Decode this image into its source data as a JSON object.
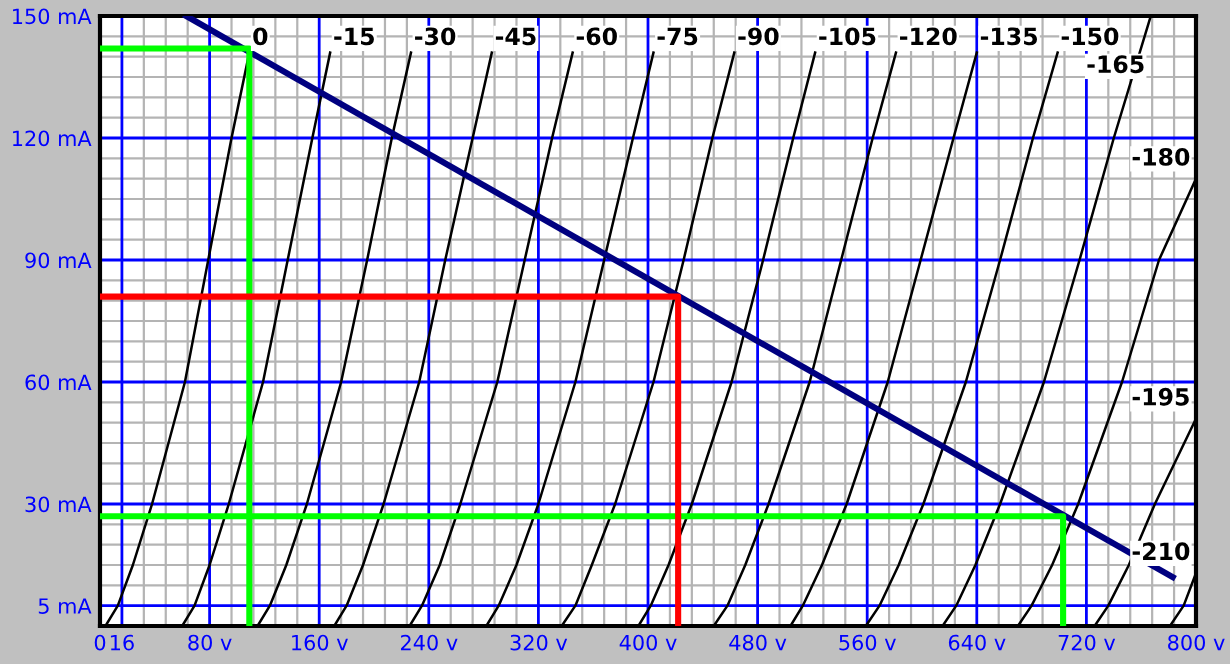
{
  "chart_data": {
    "type": "line",
    "grid": true,
    "marker": "none",
    "line_style": "solid",
    "xlim": [
      0,
      800
    ],
    "ylim": [
      0,
      150
    ],
    "xticks": [
      0,
      16,
      {
        "value": 32,
        "label": null
      },
      {
        "value": 48,
        "label": null
      },
      {
        "value": 64,
        "label": null
      },
      {
        "value": 80,
        "label": "80 v"
      },
      {
        "value": 96,
        "label": null
      },
      {
        "value": 112,
        "label": null
      },
      {
        "value": 128,
        "label": null
      },
      {
        "value": 144,
        "label": null
      },
      {
        "value": 160,
        "label": "160 v"
      },
      {
        "value": 176,
        "label": null
      },
      {
        "value": 192,
        "label": null
      },
      {
        "value": 208,
        "label": null
      },
      {
        "value": 224,
        "label": null
      },
      {
        "value": 240,
        "label": "240 v"
      },
      {
        "value": 256,
        "label": null
      },
      {
        "value": 272,
        "label": null
      },
      {
        "value": 288,
        "label": null
      },
      {
        "value": 304,
        "label": null
      },
      {
        "value": 320,
        "label": "320 v"
      },
      {
        "value": 336,
        "label": null
      },
      {
        "value": 352,
        "label": null
      },
      {
        "value": 368,
        "label": null
      },
      {
        "value": 384,
        "label": null
      },
      {
        "value": 400,
        "label": "400 v"
      },
      {
        "value": 416,
        "label": null
      },
      {
        "value": 432,
        "label": null
      },
      {
        "value": 448,
        "label": null
      },
      {
        "value": 464,
        "label": null
      },
      {
        "value": 480,
        "label": "480 v"
      },
      {
        "value": 496,
        "label": null
      },
      {
        "value": 512,
        "label": null
      },
      {
        "value": 528,
        "label": null
      },
      {
        "value": 544,
        "label": null
      },
      {
        "value": 560,
        "label": "560 v"
      },
      {
        "value": 576,
        "label": null
      },
      {
        "value": 592,
        "label": null
      },
      {
        "value": 608,
        "label": null
      },
      {
        "value": 624,
        "label": null
      },
      {
        "value": 640,
        "label": "640 v"
      },
      {
        "value": 656,
        "label": null
      },
      {
        "value": 672,
        "label": null
      },
      {
        "value": 688,
        "label": null
      },
      {
        "value": 704,
        "label": null
      },
      {
        "value": 720,
        "label": "720 v"
      },
      {
        "value": 736,
        "label": null
      },
      {
        "value": 752,
        "label": null
      },
      {
        "value": 768,
        "label": null
      },
      {
        "value": 784,
        "label": null
      },
      {
        "value": 800,
        "label": "800 v"
      }
    ],
    "yticks": [
      {
        "value": 0,
        "label": null
      },
      {
        "value": 5,
        "label": "5 mA"
      },
      {
        "value": 10,
        "label": null
      },
      {
        "value": 15,
        "label": null
      },
      {
        "value": 20,
        "label": null
      },
      {
        "value": 25,
        "label": null
      },
      {
        "value": 30,
        "label": "30 mA"
      },
      {
        "value": 35,
        "label": null
      },
      {
        "value": 40,
        "label": null
      },
      {
        "value": 45,
        "label": null
      },
      {
        "value": 50,
        "label": null
      },
      {
        "value": 55,
        "label": null
      },
      {
        "value": 60,
        "label": "60 mA"
      },
      {
        "value": 65,
        "label": null
      },
      {
        "value": 70,
        "label": null
      },
      {
        "value": 75,
        "label": null
      },
      {
        "value": 80,
        "label": null
      },
      {
        "value": 85,
        "label": null
      },
      {
        "value": 90,
        "label": "90 mA"
      },
      {
        "value": 95,
        "label": null
      },
      {
        "value": 100,
        "label": null
      },
      {
        "value": 105,
        "label": null
      },
      {
        "value": 110,
        "label": null
      },
      {
        "value": 115,
        "label": null
      },
      {
        "value": 120,
        "label": "120 mA"
      },
      {
        "value": 125,
        "label": null
      },
      {
        "value": 130,
        "label": null
      },
      {
        "value": 135,
        "label": null
      },
      {
        "value": 140,
        "label": null
      },
      {
        "value": 145,
        "label": null
      },
      {
        "value": 150,
        "label": "150 mA"
      }
    ],
    "series": [
      {
        "name": "0",
        "color": "#000000",
        "x": [
          4,
          13,
          24,
          38,
          62,
          79,
          96,
          109
        ],
        "values": [
          0,
          5,
          15,
          30,
          60,
          90,
          120,
          141
        ]
      },
      {
        "name": "-15",
        "color": "#000000",
        "x": [
          60,
          69,
          80,
          94,
          119,
          137,
          155,
          168
        ],
        "values": [
          0,
          5,
          15,
          30,
          60,
          90,
          120,
          141
        ]
      },
      {
        "name": "-30",
        "color": "#000000",
        "x": [
          115,
          124,
          136,
          151,
          176,
          195,
          213,
          227
        ],
        "values": [
          0,
          5,
          15,
          30,
          60,
          90,
          120,
          141
        ]
      },
      {
        "name": "-45",
        "color": "#000000",
        "x": [
          171,
          180,
          192,
          207,
          233,
          252,
          272,
          286
        ],
        "values": [
          0,
          5,
          15,
          30,
          60,
          90,
          120,
          141
        ]
      },
      {
        "name": "-60",
        "color": "#000000",
        "x": [
          226,
          235,
          248,
          263,
          290,
          310,
          330,
          345
        ],
        "values": [
          0,
          5,
          15,
          30,
          60,
          90,
          120,
          141
        ]
      },
      {
        "name": "-75",
        "color": "#000000",
        "x": [
          282,
          291,
          304,
          320,
          347,
          368,
          389,
          404
        ],
        "values": [
          0,
          5,
          15,
          30,
          60,
          90,
          120,
          141
        ]
      },
      {
        "name": "-90",
        "color": "#000000",
        "x": [
          337,
          347,
          359,
          376,
          404,
          426,
          447,
          463
        ],
        "values": [
          0,
          5,
          15,
          30,
          60,
          90,
          120,
          141
        ]
      },
      {
        "name": "-105",
        "color": "#000000",
        "x": [
          393,
          402,
          415,
          432,
          461,
          484,
          506,
          522
        ],
        "values": [
          0,
          5,
          15,
          30,
          60,
          90,
          120,
          141
        ]
      },
      {
        "name": "-120",
        "color": "#000000",
        "x": [
          448,
          458,
          471,
          488,
          518,
          541,
          564,
          581
        ],
        "values": [
          0,
          5,
          15,
          30,
          60,
          90,
          120,
          141
        ]
      },
      {
        "name": "-135",
        "color": "#000000",
        "x": [
          504,
          513,
          527,
          545,
          575,
          599,
          623,
          640
        ],
        "values": [
          0,
          5,
          15,
          30,
          60,
          90,
          120,
          141
        ]
      },
      {
        "name": "-150",
        "color": "#000000",
        "x": [
          559,
          569,
          583,
          601,
          632,
          657,
          681,
          699
        ],
        "values": [
          0,
          5,
          15,
          30,
          60,
          90,
          120,
          141
        ]
      },
      {
        "name": "-165",
        "color": "#000000",
        "x": [
          615,
          625,
          639,
          657,
          689,
          715,
          740,
          767
        ],
        "values": [
          0,
          5,
          15,
          30,
          60,
          90,
          120,
          150
        ]
      },
      {
        "name": "-180",
        "color": "#000000",
        "x": [
          670,
          680,
          695,
          714,
          746,
          773,
          800
        ],
        "values": [
          0,
          5,
          15,
          30,
          60,
          90,
          110
        ]
      },
      {
        "name": "-195",
        "color": "#000000",
        "x": [
          726,
          736,
          751,
          770,
          800
        ],
        "values": [
          0,
          5,
          15,
          30,
          51
        ]
      },
      {
        "name": "-210",
        "color": "#000000",
        "x": [
          781,
          791,
          800
        ],
        "values": [
          0,
          5,
          13
        ]
      },
      {
        "color": "#000080",
        "x": [
          63,
          783
        ],
        "values": [
          150,
          12
        ]
      },
      {
        "color": "#00ff00",
        "x": [
          0,
          109,
          109
        ],
        "values": [
          142,
          142,
          0
        ]
      },
      {
        "color": "#00ff00",
        "x": [
          0,
          703,
          703
        ],
        "values": [
          27,
          27,
          0
        ]
      },
      {
        "color": "#ff0000",
        "x": [
          0,
          422,
          422
        ],
        "values": [
          81,
          81,
          0
        ]
      }
    ]
  }
}
